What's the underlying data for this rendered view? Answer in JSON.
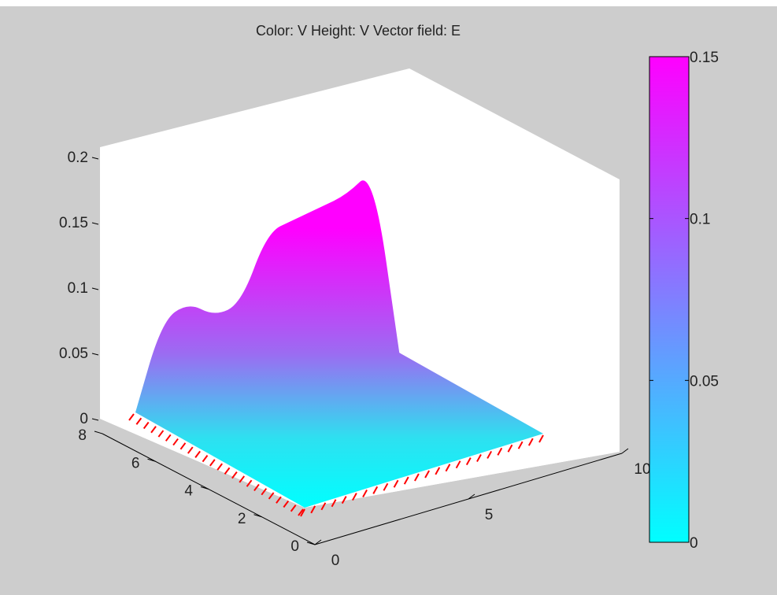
{
  "chart_data": {
    "type": "surface3d",
    "title": "Color: V  Height: V  Vector field: E",
    "xlabel": "",
    "ylabel": "",
    "zlabel": "",
    "xlim": [
      0,
      10
    ],
    "ylim": [
      0,
      8
    ],
    "zlim": [
      0,
      0.2
    ],
    "x_ticks": [
      "0",
      "5",
      "10"
    ],
    "y_ticks": [
      "0",
      "2",
      "4",
      "6",
      "8"
    ],
    "z_ticks": [
      "0",
      "0.05",
      "0.1",
      "0.15",
      "0.2"
    ],
    "colormap": "cool",
    "colormap_colors": [
      "#00ffff",
      "#ff00ff"
    ],
    "colorbar": {
      "range": [
        0,
        0.15
      ],
      "ticks": [
        "0",
        "0.05",
        "0.1",
        "0.15"
      ]
    },
    "surface_profile_at_y_max": {
      "x": [
        0,
        1,
        2,
        3,
        4,
        5,
        6,
        7,
        8,
        9,
        10
      ],
      "z": [
        0,
        0.065,
        0.075,
        0.06,
        0.065,
        0.115,
        0.12,
        0.125,
        0.13,
        0.145,
        0
      ]
    },
    "surface_base_value": 0,
    "vector_field": {
      "name": "E",
      "color": "#ff0000"
    },
    "grid": false
  }
}
